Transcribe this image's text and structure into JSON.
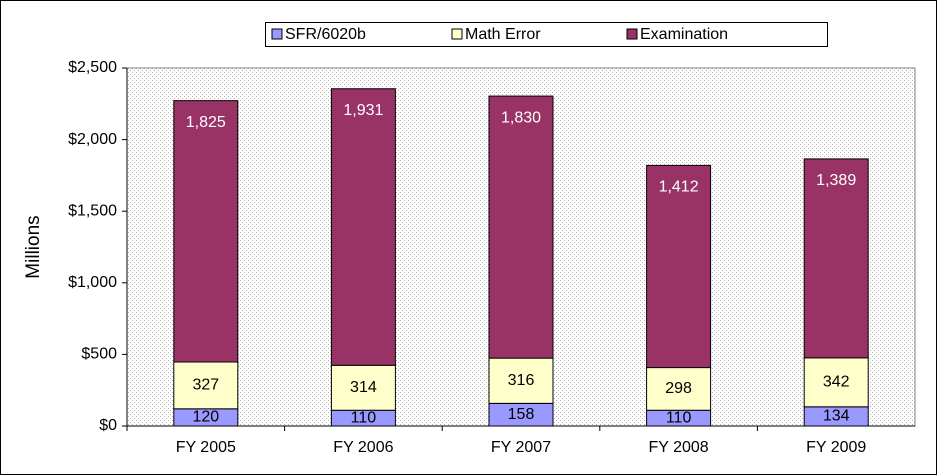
{
  "chart_data": {
    "type": "stacked-bar",
    "y_axis_label": "Millions",
    "categories": [
      "FY 2005",
      "FY 2006",
      "FY 2007",
      "FY 2008",
      "FY 2009"
    ],
    "series": [
      {
        "name": "SFR/6020b",
        "color": "#9999ff",
        "values": [
          120,
          110,
          158,
          110,
          134
        ]
      },
      {
        "name": "Math Error",
        "color": "#ffffcc",
        "values": [
          327,
          314,
          316,
          298,
          342
        ]
      },
      {
        "name": "Examination",
        "color": "#993366",
        "values": [
          1825,
          1931,
          1830,
          1412,
          1389
        ],
        "value_labels": [
          "1,825",
          "1,931",
          "1,830",
          "1,412",
          "1,389"
        ]
      }
    ],
    "ylim": [
      0,
      2500
    ],
    "yticks": [
      {
        "value": 0,
        "label": "$0"
      },
      {
        "value": 500,
        "label": "$500"
      },
      {
        "value": 1000,
        "label": "$1,000"
      },
      {
        "value": 1500,
        "label": "$1,500"
      },
      {
        "value": 2000,
        "label": "$2,000"
      },
      {
        "value": 2500,
        "label": "$2,500"
      }
    ],
    "grid": false,
    "legend": "top"
  }
}
